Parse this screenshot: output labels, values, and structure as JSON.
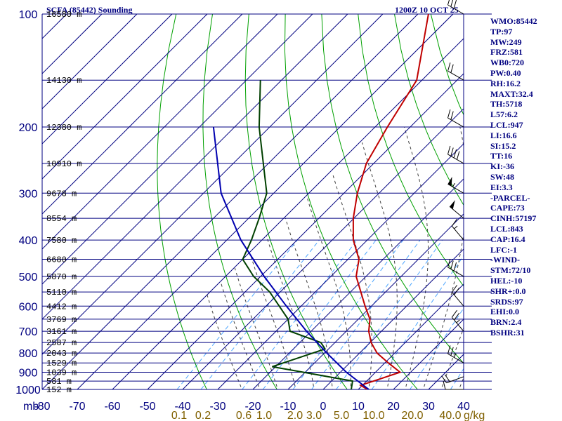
{
  "header": {
    "title": "SCFA (85442) Sounding",
    "time": "1200Z 10 OCT 25"
  },
  "colors": {
    "grid": "#000080",
    "dry_adiabat": "#00a000",
    "moist_adiabat": "#404040",
    "mixing_ratio": "#4da6ff",
    "temperature": "#c00000",
    "dewpoint": "#004000",
    "parcel": "#0000b0",
    "mixing_label": "#806000",
    "text": "#000080"
  },
  "indices": [
    "WMO:85442",
    "TP:97",
    "MW:249",
    "FRZ:581",
    "WB0:720",
    "PW:0.40",
    "RH:16.2",
    "MAXT:32.4",
    "TH:5718",
    "L57:6.2",
    "LCL:947",
    "LI:16.6",
    "SI:15.2",
    "TT:16",
    "KI:-36",
    "SW:48",
    "EI:3.3",
    "-PARCEL-",
    "CAPE:73",
    "CINH:57197",
    "LCL:843",
    "CAP:16.4",
    "LFC:-1",
    "-WIND-",
    "STM:72/10",
    "HEL:-10",
    "SHR+:0.0",
    "SRDS:97",
    "EHI:0.0",
    "BRN:2.4",
    "BSHR:31"
  ],
  "chart_data": {
    "type": "line",
    "diagram": "skew-t log-p",
    "xlabel": "",
    "ylabel": "mb",
    "pressure_axis": {
      "ticks": [
        100,
        200,
        300,
        400,
        500,
        600,
        700,
        800,
        900,
        1000
      ],
      "range": [
        100,
        1000
      ],
      "scale": "log"
    },
    "temperature_axis": {
      "ticks": [
        -80,
        -70,
        -60,
        -50,
        -40,
        -30,
        -20,
        -10,
        0,
        10,
        20,
        30,
        40
      ],
      "range": [
        -80,
        40
      ],
      "unit": "C"
    },
    "mixing_ratio_axis": {
      "ticks": [
        "0.1",
        "0.2",
        "0.6",
        "1.0",
        "2.0",
        "3.0",
        "5.0",
        "10.0",
        "20.0",
        "40.0"
      ],
      "unit": "g/kg"
    },
    "height_labels": [
      {
        "p": 100,
        "label": "16580 m"
      },
      {
        "p": 150,
        "label": "14130 m"
      },
      {
        "p": 200,
        "label": "12380 m"
      },
      {
        "p": 250,
        "label": "10910 m"
      },
      {
        "p": 300,
        "label": "9678 m"
      },
      {
        "p": 350,
        "label": "8554 m"
      },
      {
        "p": 400,
        "label": "7580 m"
      },
      {
        "p": 450,
        "label": "6680 m"
      },
      {
        "p": 500,
        "label": "5870 m"
      },
      {
        "p": 550,
        "label": "5110 m"
      },
      {
        "p": 600,
        "label": "4412 m"
      },
      {
        "p": 650,
        "label": "3769 m"
      },
      {
        "p": 700,
        "label": "3161 m"
      },
      {
        "p": 750,
        "label": "2587 m"
      },
      {
        "p": 800,
        "label": "2043 m"
      },
      {
        "p": 850,
        "label": "1529 m"
      },
      {
        "p": 900,
        "label": "1039 m"
      },
      {
        "p": 950,
        "label": "581 m"
      },
      {
        "p": 1000,
        "label": "152 m"
      }
    ],
    "series": [
      {
        "kind": "temperature",
        "points": [
          {
            "p": 1000,
            "t": 12.6
          },
          {
            "p": 975,
            "t": 9.5
          },
          {
            "p": 950,
            "t": 12.0
          },
          {
            "p": 900,
            "t": 17.0
          },
          {
            "p": 850,
            "t": 11.0
          },
          {
            "p": 800,
            "t": 5.0
          },
          {
            "p": 750,
            "t": 0.3
          },
          {
            "p": 700,
            "t": -3.6
          },
          {
            "p": 650,
            "t": -6.7
          },
          {
            "p": 600,
            "t": -11.8
          },
          {
            "p": 500,
            "t": -22.8
          },
          {
            "p": 450,
            "t": -26.9
          },
          {
            "p": 400,
            "t": -34.0
          },
          {
            "p": 350,
            "t": -40.2
          },
          {
            "p": 300,
            "t": -46.2
          },
          {
            "p": 250,
            "t": -52.1
          },
          {
            "p": 200,
            "t": -56.5
          },
          {
            "p": 150,
            "t": -61.5
          },
          {
            "p": 100,
            "t": -77.0
          }
        ]
      },
      {
        "kind": "dewpoint",
        "points": [
          {
            "p": 1000,
            "t": 8.0
          },
          {
            "p": 950,
            "t": 6.0
          },
          {
            "p": 890,
            "t": -14.0
          },
          {
            "p": 870,
            "t": -21.0
          },
          {
            "p": 780,
            "t": -11.0
          },
          {
            "p": 750,
            "t": -14.0
          },
          {
            "p": 700,
            "t": -26.0
          },
          {
            "p": 650,
            "t": -30.0
          },
          {
            "p": 550,
            "t": -43.0
          },
          {
            "p": 500,
            "t": -52.0
          },
          {
            "p": 450,
            "t": -60.0
          },
          {
            "p": 400,
            "t": -63.0
          },
          {
            "p": 350,
            "t": -67.0
          },
          {
            "p": 300,
            "t": -72.0
          },
          {
            "p": 200,
            "t": -93.0
          },
          {
            "p": 150,
            "t": -106.0
          }
        ]
      },
      {
        "kind": "parcel",
        "points": [
          {
            "p": 1000,
            "t": 13.0
          },
          {
            "p": 900,
            "t": 1.7
          },
          {
            "p": 800,
            "t": -9.3
          },
          {
            "p": 700,
            "t": -21.3
          },
          {
            "p": 600,
            "t": -34.2
          },
          {
            "p": 500,
            "t": -49.0
          },
          {
            "p": 400,
            "t": -66.0
          },
          {
            "p": 300,
            "t": -85.0
          },
          {
            "p": 200,
            "t": -106.0
          }
        ]
      }
    ],
    "wind_barbs": [
      {
        "p": 1000,
        "dir": 270,
        "spd": 10
      },
      {
        "p": 925,
        "dir": 250,
        "spd": 20
      },
      {
        "p": 850,
        "dir": 300,
        "spd": 25
      },
      {
        "p": 700,
        "dir": 320,
        "spd": 25
      },
      {
        "p": 600,
        "dir": 320,
        "spd": 20
      },
      {
        "p": 500,
        "dir": 300,
        "spd": 30
      },
      {
        "p": 400,
        "dir": 320,
        "spd": 15
      },
      {
        "p": 350,
        "dir": 310,
        "spd": 50
      },
      {
        "p": 300,
        "dir": 300,
        "spd": 55
      },
      {
        "p": 250,
        "dir": 300,
        "spd": 40
      },
      {
        "p": 200,
        "dir": 300,
        "spd": 20
      },
      {
        "p": 150,
        "dir": 300,
        "spd": 20
      },
      {
        "p": 100,
        "dir": 300,
        "spd": 30
      }
    ]
  }
}
